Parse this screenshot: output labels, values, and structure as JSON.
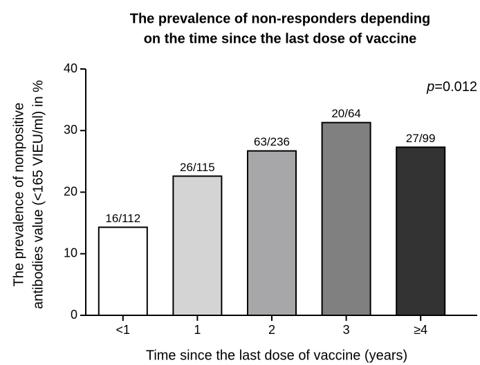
{
  "chart_data": {
    "type": "bar",
    "title": [
      "The prevalence of non-responders depending",
      "on the time since the last dose of vaccine"
    ],
    "x_label": "Time since the last dose of vaccine (years)",
    "y_label": [
      "The prevalence of nonpositive",
      "antibodies value (<165 VIEU/ml) in %"
    ],
    "annotation": [
      "p",
      "=0.012"
    ],
    "categories": [
      "<1",
      "1",
      "2",
      "3",
      "≥4"
    ],
    "values": [
      14.3,
      22.6,
      26.7,
      31.3,
      27.3
    ],
    "value_labels": [
      "16/112",
      "26/115",
      "63/236",
      "20/64",
      "27/99"
    ],
    "colors": [
      "#ffffff",
      "#d4d4d4",
      "#a7a7a9",
      "#808080",
      "#333333"
    ],
    "ylim": [
      0,
      40
    ],
    "yticks": [
      0,
      10,
      20,
      30,
      40
    ]
  }
}
